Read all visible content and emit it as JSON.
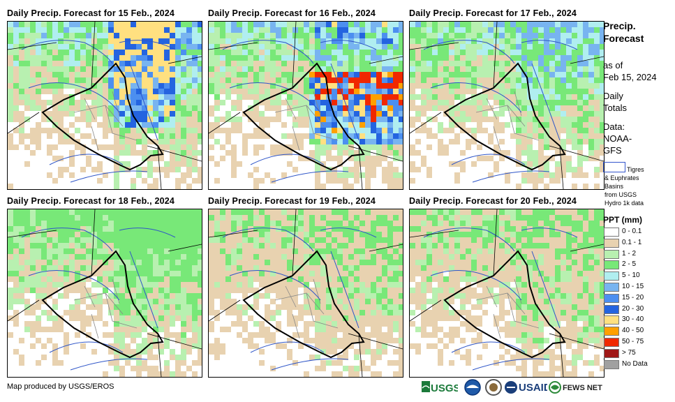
{
  "panels": [
    {
      "title": "Daily Precip. Forecast for 15 Feb., 2024"
    },
    {
      "title": "Daily Precip. Forecast for 16 Feb., 2024"
    },
    {
      "title": "Daily Precip. Forecast for 17 Feb., 2024"
    },
    {
      "title": "Daily Precip. Forecast for 18 Feb., 2024"
    },
    {
      "title": "Daily Precip. Forecast for 19 Feb., 2024"
    },
    {
      "title": "Daily Precip. Forecast for 20 Feb., 2024"
    }
  ],
  "side": {
    "title_line1": "Precip.",
    "title_line2": "Forecast",
    "asof_line1": "as of",
    "asof_line2": "Feb 15, 2024",
    "daily1": "Daily",
    "daily2": "Totals",
    "data1": "Data:",
    "data2": "NOAA-",
    "data3": "GFS",
    "basin1": "Tigres",
    "basin2": "& Euphrates",
    "basin3": "Basins",
    "basin4": "from USGS",
    "basin5": "Hydro 1k data"
  },
  "legend": {
    "title": "PPT (mm)",
    "items": [
      {
        "label": "0 - 0.1",
        "color": "#ffffff"
      },
      {
        "label": "0.1 - 1",
        "color": "#e8d2b0"
      },
      {
        "label": "1 - 2",
        "color": "#b8f0b0"
      },
      {
        "label": "2 - 5",
        "color": "#78e878"
      },
      {
        "label": "5 - 10",
        "color": "#b0eef0"
      },
      {
        "label": "10 - 15",
        "color": "#78b4f0"
      },
      {
        "label": "15 - 20",
        "color": "#4c8ff0"
      },
      {
        "label": "20 - 30",
        "color": "#2464e0"
      },
      {
        "label": "30 - 40",
        "color": "#ffe080"
      },
      {
        "label": "40 - 50",
        "color": "#ffa000"
      },
      {
        "label": "50 - 75",
        "color": "#f02800"
      },
      {
        "label": "> 75",
        "color": "#a01818"
      },
      {
        "label": "No Data",
        "color": "#a0a0a0"
      }
    ]
  },
  "footer": {
    "credit": "Map produced by USGS/EROS"
  },
  "logos": {
    "usgs": "USGS",
    "usaid": "USAID",
    "fews": "FEWS NET"
  }
}
